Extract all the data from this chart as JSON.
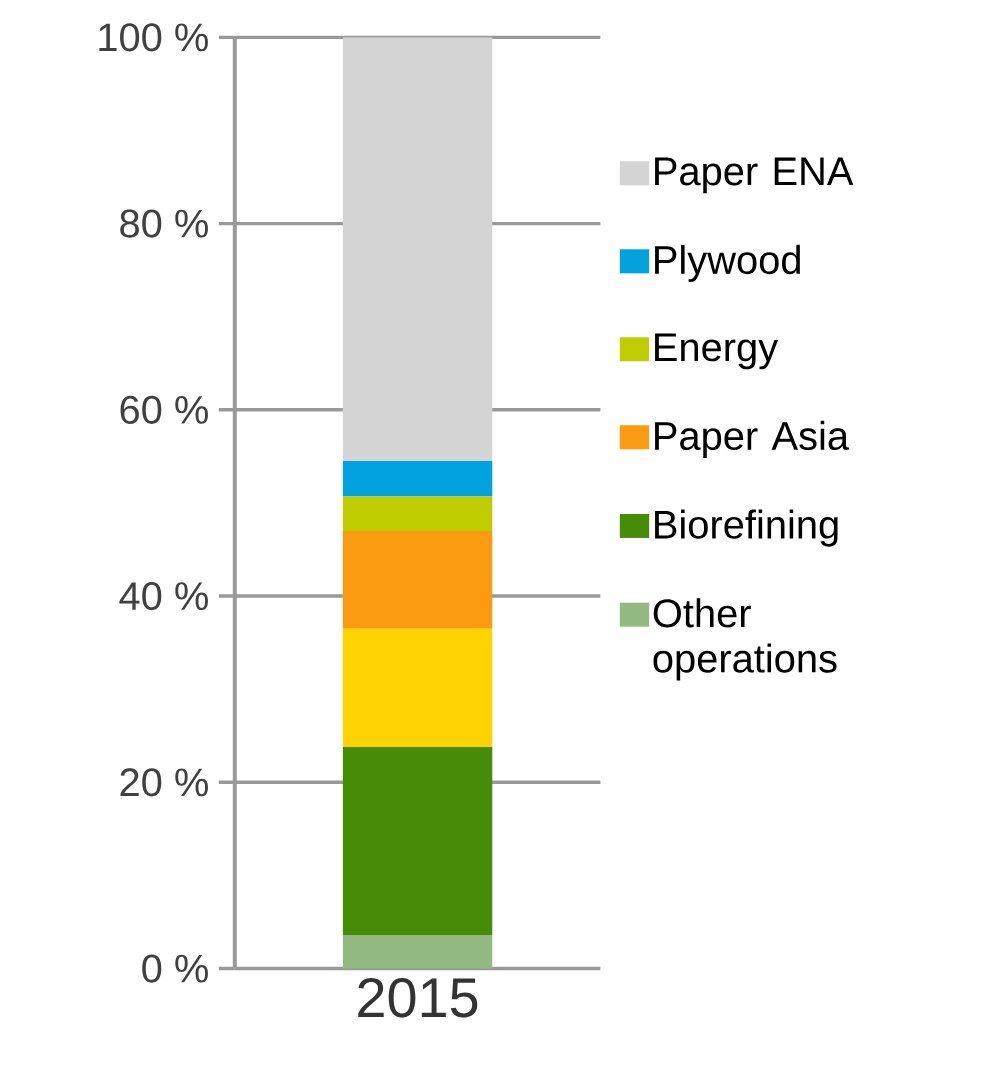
{
  "chart_data": {
    "type": "bar",
    "stacked": true,
    "categories": [
      "2015"
    ],
    "series": [
      {
        "name": "Other operations",
        "color": "#93b983",
        "values": [
          3.6
        ]
      },
      {
        "name": "Biorefining",
        "color": "#478c08",
        "values": [
          20.2
        ]
      },
      {
        "color": "#fdd300",
        "values": [
          12.7
        ]
      },
      {
        "name": "Paper Asia",
        "color": "#fb9b11",
        "values": [
          10.5
        ]
      },
      {
        "name": "Energy",
        "color": "#bfcd00",
        "values": [
          3.7
        ]
      },
      {
        "name": "Plywood",
        "color": "#02a2de",
        "values": [
          3.8
        ]
      },
      {
        "name": "Paper ENA",
        "color": "#d4d4d4",
        "values": [
          45.5
        ]
      }
    ],
    "ylim": [
      0,
      100
    ],
    "yticks": [
      {
        "value": 0,
        "label": "0 %"
      },
      {
        "value": 20,
        "label": "20 %"
      },
      {
        "value": 40,
        "label": "40 %"
      },
      {
        "value": 60,
        "label": "60 %"
      },
      {
        "value": 80,
        "label": "80 %"
      },
      {
        "value": 100,
        "label": "100 %"
      }
    ],
    "grid": "y",
    "legend": "right"
  }
}
